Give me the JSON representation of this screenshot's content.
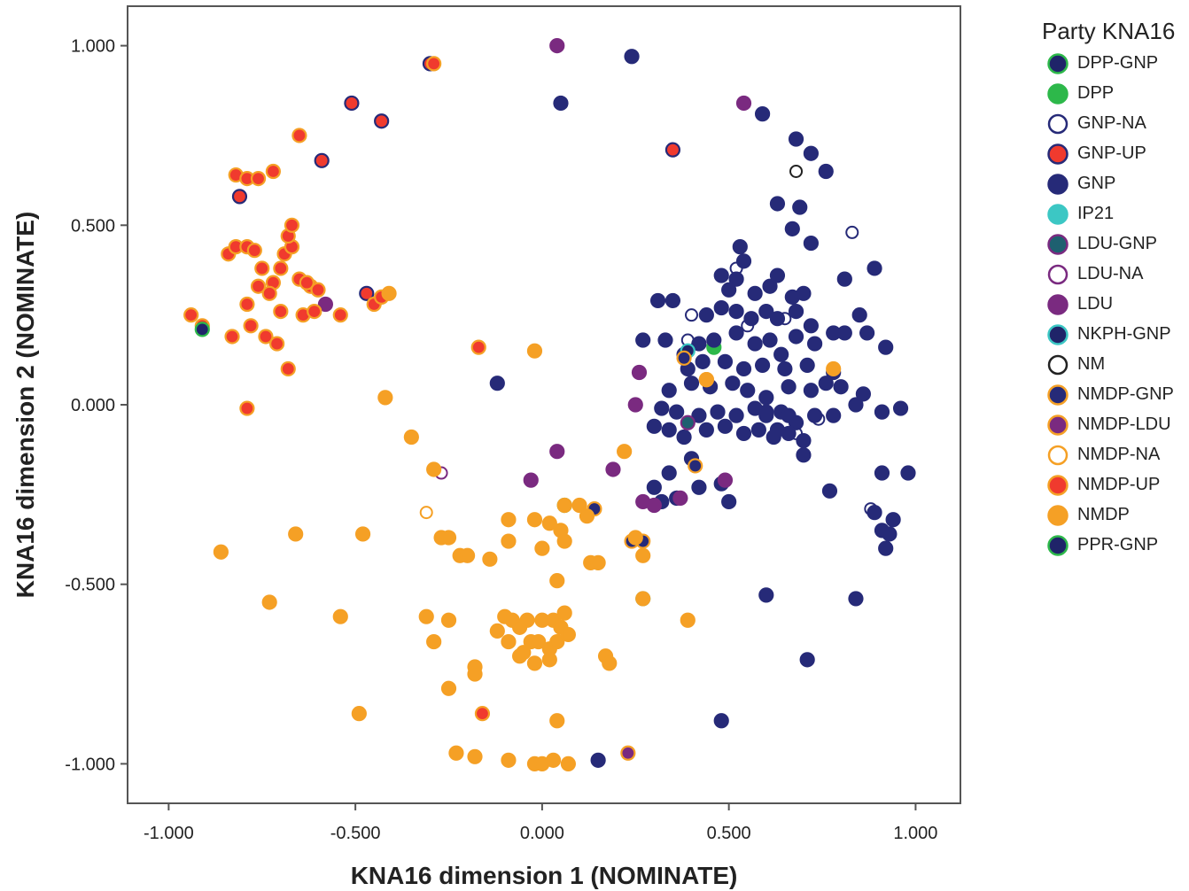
{
  "chart_data": {
    "type": "scatter",
    "title": "",
    "xlabel": "KNA16 dimension 1 (NOMINATE)",
    "ylabel": "KNA16 dimension 2 (NOMINATE)",
    "xlim": [
      -1.11,
      1.12
    ],
    "ylim": [
      -1.11,
      1.11
    ],
    "xticks": [
      "-1.000",
      "-0.500",
      "0.000",
      "0.500",
      "1.000"
    ],
    "yticks": [
      "1.000",
      "0.500",
      "0.000",
      "-0.500",
      "-1.000"
    ],
    "xtick_values": [
      -1,
      -0.5,
      0,
      0.5,
      1
    ],
    "ytick_values": [
      1,
      0.5,
      0,
      -0.5,
      -1
    ],
    "grid": false,
    "legend_title": "Party KNA16",
    "legend_position": "right",
    "series": [
      {
        "name": "DPP-GNP",
        "fill": "#1f2469",
        "stroke": "#2db84a",
        "hollow": false,
        "points": []
      },
      {
        "name": "DPP",
        "fill": "#2db84a",
        "stroke": "#2db84a",
        "hollow": false,
        "points": [
          [
            0.06,
            -0.28
          ],
          [
            0.46,
            0.16
          ]
        ]
      },
      {
        "name": "GNP-NA",
        "fill": "#ffffff",
        "stroke": "#262a78",
        "hollow": true,
        "points": [
          [
            0.4,
            0.25
          ],
          [
            0.39,
            0.18
          ],
          [
            0.52,
            0.38
          ],
          [
            0.55,
            0.22
          ],
          [
            0.65,
            0.24
          ],
          [
            0.83,
            0.48
          ],
          [
            0.88,
            -0.29
          ],
          [
            0.74,
            -0.04
          ],
          [
            0.68,
            -0.08
          ]
        ]
      },
      {
        "name": "GNP-UP",
        "fill": "#f03a2e",
        "stroke": "#262a78",
        "hollow": false,
        "points": [
          [
            -0.3,
            0.95
          ],
          [
            -0.51,
            0.84
          ],
          [
            -0.43,
            0.79
          ],
          [
            -0.59,
            0.68
          ],
          [
            -0.81,
            0.58
          ],
          [
            0.35,
            0.71
          ],
          [
            -0.47,
            0.31
          ]
        ]
      },
      {
        "name": "GNP",
        "fill": "#262a78",
        "stroke": "#262a78",
        "hollow": false,
        "points": [
          [
            0.24,
            0.97
          ],
          [
            0.05,
            0.84
          ],
          [
            0.59,
            0.81
          ],
          [
            0.68,
            0.74
          ],
          [
            0.72,
            0.7
          ],
          [
            0.76,
            0.65
          ],
          [
            0.63,
            0.56
          ],
          [
            0.69,
            0.55
          ],
          [
            0.67,
            0.49
          ],
          [
            0.72,
            0.45
          ],
          [
            0.53,
            0.44
          ],
          [
            0.52,
            0.35
          ],
          [
            0.54,
            0.4
          ],
          [
            0.89,
            0.38
          ],
          [
            0.81,
            0.35
          ],
          [
            0.48,
            0.36
          ],
          [
            0.5,
            0.32
          ],
          [
            0.57,
            0.31
          ],
          [
            0.61,
            0.33
          ],
          [
            0.63,
            0.36
          ],
          [
            0.67,
            0.3
          ],
          [
            0.7,
            0.31
          ],
          [
            0.31,
            0.29
          ],
          [
            0.35,
            0.29
          ],
          [
            0.44,
            0.25
          ],
          [
            0.48,
            0.27
          ],
          [
            0.52,
            0.26
          ],
          [
            0.56,
            0.24
          ],
          [
            0.6,
            0.26
          ],
          [
            0.63,
            0.24
          ],
          [
            0.68,
            0.26
          ],
          [
            0.72,
            0.22
          ],
          [
            0.78,
            0.2
          ],
          [
            0.85,
            0.25
          ],
          [
            0.27,
            0.18
          ],
          [
            0.33,
            0.18
          ],
          [
            0.38,
            0.14
          ],
          [
            0.42,
            0.17
          ],
          [
            0.46,
            0.18
          ],
          [
            0.52,
            0.2
          ],
          [
            0.57,
            0.17
          ],
          [
            0.61,
            0.18
          ],
          [
            0.64,
            0.14
          ],
          [
            0.68,
            0.19
          ],
          [
            0.73,
            0.17
          ],
          [
            0.81,
            0.2
          ],
          [
            0.87,
            0.2
          ],
          [
            0.92,
            0.16
          ],
          [
            0.39,
            0.1
          ],
          [
            0.43,
            0.12
          ],
          [
            0.49,
            0.12
          ],
          [
            0.54,
            0.1
          ],
          [
            0.59,
            0.11
          ],
          [
            0.65,
            0.1
          ],
          [
            0.71,
            0.11
          ],
          [
            0.78,
            0.09
          ],
          [
            0.34,
            0.04
          ],
          [
            0.4,
            0.06
          ],
          [
            0.45,
            0.05
          ],
          [
            0.51,
            0.06
          ],
          [
            0.55,
            0.04
          ],
          [
            0.6,
            0.02
          ],
          [
            0.66,
            0.05
          ],
          [
            0.72,
            0.04
          ],
          [
            0.8,
            0.05
          ],
          [
            0.86,
            0.03
          ],
          [
            0.32,
            -0.01
          ],
          [
            0.36,
            -0.02
          ],
          [
            0.42,
            -0.03
          ],
          [
            0.47,
            -0.02
          ],
          [
            0.52,
            -0.03
          ],
          [
            0.57,
            -0.01
          ],
          [
            0.6,
            -0.03
          ],
          [
            0.64,
            -0.02
          ],
          [
            0.68,
            -0.05
          ],
          [
            0.73,
            -0.03
          ],
          [
            0.78,
            -0.03
          ],
          [
            0.84,
            0
          ],
          [
            0.91,
            -0.02
          ],
          [
            0.96,
            -0.01
          ],
          [
            0.3,
            -0.06
          ],
          [
            0.34,
            -0.07
          ],
          [
            0.38,
            -0.09
          ],
          [
            0.44,
            -0.07
          ],
          [
            0.49,
            -0.06
          ],
          [
            0.54,
            -0.08
          ],
          [
            0.58,
            -0.07
          ],
          [
            0.62,
            -0.09
          ],
          [
            0.66,
            -0.08
          ],
          [
            0.7,
            -0.1
          ],
          [
            0.6,
            -0.02
          ],
          [
            0.34,
            -0.19
          ],
          [
            0.4,
            -0.15
          ],
          [
            0.3,
            -0.23
          ],
          [
            0.32,
            -0.27
          ],
          [
            0.36,
            -0.26
          ],
          [
            0.42,
            -0.23
          ],
          [
            0.5,
            -0.27
          ],
          [
            0.48,
            -0.22
          ],
          [
            0.7,
            -0.14
          ],
          [
            0.77,
            -0.24
          ],
          [
            0.91,
            -0.19
          ],
          [
            0.98,
            -0.19
          ],
          [
            0.89,
            -0.3
          ],
          [
            0.94,
            -0.32
          ],
          [
            0.91,
            -0.35
          ],
          [
            0.92,
            -0.4
          ],
          [
            0.93,
            -0.36
          ],
          [
            0.6,
            -0.53
          ],
          [
            0.84,
            -0.54
          ],
          [
            0.71,
            -0.71
          ],
          [
            0.48,
            -0.88
          ],
          [
            0.15,
            -0.99
          ],
          [
            0.66,
            -0.03
          ],
          [
            0.63,
            -0.07
          ],
          [
            0.76,
            0.06
          ],
          [
            -0.12,
            0.06
          ]
        ]
      },
      {
        "name": "IP21",
        "fill": "#3cc7c4",
        "stroke": "#3cc7c4",
        "hollow": false,
        "points": [
          [
            0.27,
            -0.54
          ]
        ]
      },
      {
        "name": "LDU-GNP",
        "fill": "#1e6070",
        "stroke": "#7a2a80",
        "hollow": false,
        "points": [
          [
            0.39,
            -0.05
          ]
        ]
      },
      {
        "name": "LDU-NA",
        "fill": "#ffffff",
        "stroke": "#7a2a80",
        "hollow": true,
        "points": [
          [
            -0.27,
            -0.19
          ]
        ]
      },
      {
        "name": "LDU",
        "fill": "#7a2a80",
        "stroke": "#7a2a80",
        "hollow": false,
        "points": [
          [
            0.04,
            1
          ],
          [
            0.54,
            0.84
          ],
          [
            0.26,
            0.09
          ],
          [
            0.25,
            0
          ],
          [
            0.04,
            -0.13
          ],
          [
            -0.03,
            -0.21
          ],
          [
            0.19,
            -0.18
          ],
          [
            0.27,
            -0.27
          ],
          [
            0.3,
            -0.28
          ],
          [
            0.37,
            -0.26
          ],
          [
            0.49,
            -0.21
          ],
          [
            -0.58,
            0.28
          ]
        ]
      },
      {
        "name": "NKPH-GNP",
        "fill": "#1f2469",
        "stroke": "#3cc7c4",
        "hollow": false,
        "points": [
          [
            0.39,
            0.15
          ]
        ]
      },
      {
        "name": "NM",
        "fill": "#ffffff",
        "stroke": "#222222",
        "hollow": true,
        "points": [
          [
            0.68,
            0.65
          ]
        ]
      },
      {
        "name": "NMDP-GNP",
        "fill": "#262a78",
        "stroke": "#f5a025",
        "hollow": false,
        "points": [
          [
            0.24,
            -0.38
          ],
          [
            0.27,
            -0.38
          ],
          [
            0.41,
            -0.17
          ],
          [
            0.14,
            -0.29
          ],
          [
            0.44,
            0.07
          ],
          [
            0.38,
            0.13
          ]
        ]
      },
      {
        "name": "NMDP-LDU",
        "fill": "#7a2a80",
        "stroke": "#f5a025",
        "hollow": false,
        "points": [
          [
            0.23,
            -0.97
          ]
        ]
      },
      {
        "name": "NMDP-NA",
        "fill": "#ffffff",
        "stroke": "#f5a025",
        "hollow": true,
        "points": [
          [
            -0.31,
            -0.3
          ]
        ]
      },
      {
        "name": "NMDP-UP",
        "fill": "#f03a2e",
        "stroke": "#f5a025",
        "hollow": false,
        "points": [
          [
            -0.94,
            0.25
          ],
          [
            -0.91,
            0.22
          ],
          [
            -0.84,
            0.42
          ],
          [
            -0.82,
            0.44
          ],
          [
            -0.79,
            0.44
          ],
          [
            -0.77,
            0.43
          ],
          [
            -0.75,
            0.38
          ],
          [
            -0.76,
            0.33
          ],
          [
            -0.72,
            0.34
          ],
          [
            -0.7,
            0.38
          ],
          [
            -0.69,
            0.42
          ],
          [
            -0.67,
            0.44
          ],
          [
            -0.68,
            0.47
          ],
          [
            -0.67,
            0.5
          ],
          [
            -0.65,
            0.35
          ],
          [
            -0.62,
            0.33
          ],
          [
            -0.6,
            0.32
          ],
          [
            -0.63,
            0.34
          ],
          [
            -0.79,
            0.28
          ],
          [
            -0.78,
            0.22
          ],
          [
            -0.74,
            0.19
          ],
          [
            -0.71,
            0.17
          ],
          [
            -0.73,
            0.31
          ],
          [
            -0.7,
            0.26
          ],
          [
            -0.64,
            0.25
          ],
          [
            -0.61,
            0.26
          ],
          [
            -0.54,
            0.25
          ],
          [
            -0.45,
            0.28
          ],
          [
            -0.43,
            0.3
          ],
          [
            -0.83,
            0.19
          ],
          [
            -0.68,
            0.1
          ],
          [
            -0.79,
            -0.01
          ],
          [
            -0.82,
            0.64
          ],
          [
            -0.79,
            0.63
          ],
          [
            -0.76,
            0.63
          ],
          [
            -0.72,
            0.65
          ],
          [
            -0.65,
            0.75
          ],
          [
            -0.29,
            0.95
          ],
          [
            -0.17,
            0.16
          ],
          [
            -0.16,
            -0.86
          ]
        ]
      },
      {
        "name": "NMDP",
        "fill": "#f5a025",
        "stroke": "#f5a025",
        "hollow": false,
        "points": [
          [
            -0.41,
            0.31
          ],
          [
            -0.42,
            0.02
          ],
          [
            -0.35,
            -0.09
          ],
          [
            -0.29,
            -0.18
          ],
          [
            -0.02,
            0.15
          ],
          [
            -0.86,
            -0.41
          ],
          [
            -0.73,
            -0.55
          ],
          [
            -0.66,
            -0.36
          ],
          [
            -0.48,
            -0.36
          ],
          [
            -0.54,
            -0.59
          ],
          [
            -0.49,
            -0.86
          ],
          [
            -0.31,
            -0.59
          ],
          [
            -0.29,
            -0.66
          ],
          [
            -0.27,
            -0.37
          ],
          [
            -0.25,
            -0.37
          ],
          [
            -0.22,
            -0.42
          ],
          [
            -0.2,
            -0.42
          ],
          [
            -0.25,
            -0.6
          ],
          [
            -0.25,
            -0.79
          ],
          [
            -0.18,
            -0.73
          ],
          [
            -0.18,
            -0.75
          ],
          [
            -0.23,
            -0.97
          ],
          [
            -0.18,
            -0.98
          ],
          [
            -0.09,
            -0.99
          ],
          [
            -0.02,
            -1
          ],
          [
            0,
            -1
          ],
          [
            0.03,
            -0.99
          ],
          [
            0.07,
            -1
          ],
          [
            0.04,
            -0.88
          ],
          [
            0.17,
            -0.7
          ],
          [
            0.18,
            -0.72
          ],
          [
            -0.12,
            -0.63
          ],
          [
            -0.1,
            -0.59
          ],
          [
            -0.09,
            -0.66
          ],
          [
            -0.08,
            -0.6
          ],
          [
            -0.06,
            -0.62
          ],
          [
            -0.05,
            -0.69
          ],
          [
            -0.04,
            -0.6
          ],
          [
            -0.03,
            -0.66
          ],
          [
            -0.02,
            -0.72
          ],
          [
            -0.01,
            -0.66
          ],
          [
            0,
            -0.6
          ],
          [
            0.02,
            -0.68
          ],
          [
            0.03,
            -0.6
          ],
          [
            0.04,
            -0.66
          ],
          [
            0.05,
            -0.62
          ],
          [
            0.06,
            -0.58
          ],
          [
            0.07,
            -0.64
          ],
          [
            0.02,
            -0.71
          ],
          [
            -0.06,
            -0.7
          ],
          [
            -0.09,
            -0.32
          ],
          [
            -0.09,
            -0.38
          ],
          [
            -0.02,
            -0.32
          ],
          [
            0,
            -0.4
          ],
          [
            0.05,
            -0.35
          ],
          [
            0.06,
            -0.38
          ],
          [
            0.04,
            -0.49
          ],
          [
            0.1,
            -0.28
          ],
          [
            0.12,
            -0.31
          ],
          [
            0.13,
            -0.44
          ],
          [
            0.15,
            -0.44
          ],
          [
            0.22,
            -0.13
          ],
          [
            0.25,
            -0.37
          ],
          [
            0.27,
            -0.42
          ],
          [
            0.27,
            -0.54
          ],
          [
            0.39,
            -0.6
          ],
          [
            0.44,
            0.07
          ],
          [
            0.78,
            0.1
          ],
          [
            -0.14,
            -0.43
          ],
          [
            0.02,
            -0.33
          ],
          [
            0.06,
            -0.28
          ]
        ]
      },
      {
        "name": "PPR-GNP",
        "fill": "#1f2469",
        "stroke": "#2db84a",
        "hollow": false,
        "points": [
          [
            -0.91,
            0.21
          ]
        ]
      }
    ]
  }
}
